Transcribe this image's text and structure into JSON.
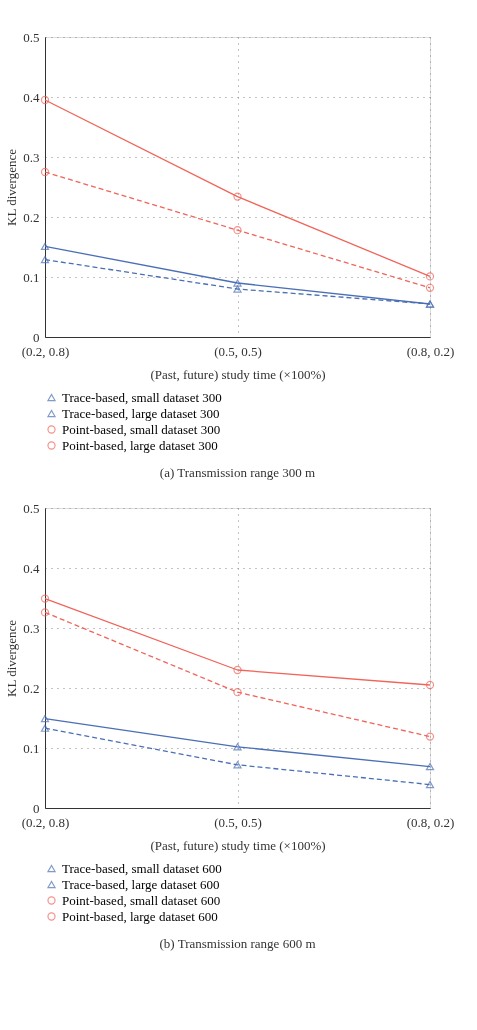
{
  "chart_data": [
    {
      "type": "line",
      "title": "(a)  Transmission range 300 m",
      "xlabel": "(Past, future) study time (×100%)",
      "ylabel": "KL divergence",
      "categories": [
        "(0.2, 0.8)",
        "(0.5, 0.5)",
        "(0.8, 0.2)"
      ],
      "ylim": [
        0,
        0.5
      ],
      "yticks": [
        0,
        0.1,
        0.2,
        0.3,
        0.4,
        0.5
      ],
      "grid": true,
      "legend": "bottom",
      "series": [
        {
          "name": "Trace-based, small dataset 300",
          "color": "#4a6fb5",
          "marker": "triangle",
          "line_style": "solid",
          "values": [
            0.151,
            0.09,
            0.055
          ]
        },
        {
          "name": "Trace-based, large dataset 300",
          "color": "#4a6fb5",
          "marker": "triangle",
          "line_style": "dashed",
          "values": [
            0.129,
            0.08,
            0.055
          ]
        },
        {
          "name": "Point-based, small dataset 300",
          "color": "#f0645a",
          "marker": "circle",
          "line_style": "solid",
          "values": [
            0.395,
            0.234,
            0.101
          ]
        },
        {
          "name": "Point-based, large dataset 300",
          "color": "#f0645a",
          "marker": "circle",
          "line_style": "dashed",
          "values": [
            0.275,
            0.178,
            0.082
          ]
        }
      ]
    },
    {
      "type": "line",
      "title": "(b)  Transmission range 600 m",
      "xlabel": "(Past, future) study time (×100%)",
      "ylabel": "KL divergence",
      "categories": [
        "(0.2, 0.8)",
        "(0.5, 0.5)",
        "(0.8, 0.2)"
      ],
      "ylim": [
        0,
        0.5
      ],
      "yticks": [
        0,
        0.1,
        0.2,
        0.3,
        0.4,
        0.5
      ],
      "grid": true,
      "legend": "bottom",
      "series": [
        {
          "name": "Trace-based, small dataset 600",
          "color": "#4a6fb5",
          "marker": "triangle",
          "line_style": "solid",
          "values": [
            0.149,
            0.102,
            0.069
          ]
        },
        {
          "name": "Trace-based, large dataset 600",
          "color": "#4a6fb5",
          "marker": "triangle",
          "line_style": "dashed",
          "values": [
            0.133,
            0.072,
            0.039
          ]
        },
        {
          "name": "Point-based, small dataset 600",
          "color": "#f0645a",
          "marker": "circle",
          "line_style": "solid",
          "values": [
            0.349,
            0.23,
            0.205
          ]
        },
        {
          "name": "Point-based, large dataset 600",
          "color": "#f0645a",
          "marker": "circle",
          "line_style": "dashed",
          "values": [
            0.326,
            0.193,
            0.119
          ]
        }
      ]
    }
  ]
}
